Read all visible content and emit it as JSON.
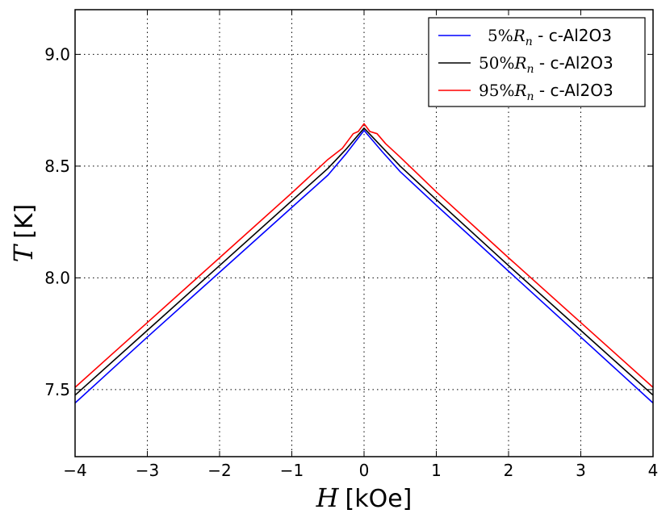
{
  "chart_data": {
    "type": "line",
    "title": "",
    "xlabel": {
      "variable": "H",
      "unit": "[kOe]"
    },
    "ylabel": {
      "variable": "T",
      "unit": "[K]"
    },
    "xlim": [
      -4,
      4
    ],
    "ylim": [
      7.2,
      9.2
    ],
    "xticks": [
      -4,
      -3,
      -2,
      -1,
      0,
      1,
      2,
      3,
      4
    ],
    "xtick_labels": [
      "−4",
      "−3",
      "−2",
      "−1",
      "0",
      "1",
      "2",
      "3",
      "4"
    ],
    "yticks": [
      7.5,
      8.0,
      8.5,
      9.0
    ],
    "ytick_labels": [
      "7.5",
      "8.0",
      "8.5",
      "9.0"
    ],
    "grid": true,
    "legend_position": "top-right",
    "series": [
      {
        "name": "5%R_n - c-Al2O3",
        "legend": {
          "percent": "5%",
          "symbol": "R",
          "subscript": "n",
          "suffix": " - c-Al2O3"
        },
        "color": "#0000ff",
        "x": [
          -4,
          -3,
          -2,
          -1,
          -0.5,
          -0.25,
          0,
          0.25,
          0.5,
          1,
          2,
          3,
          4
        ],
        "y": [
          7.44,
          7.735,
          8.025,
          8.315,
          8.46,
          8.555,
          8.66,
          8.565,
          8.475,
          8.325,
          8.03,
          7.735,
          7.44
        ]
      },
      {
        "name": "50%R_n - c-Al2O3",
        "legend": {
          "percent": "50%",
          "symbol": "R",
          "subscript": "n",
          "suffix": " - c-Al2O3"
        },
        "color": "#000000",
        "x": [
          -4,
          -3,
          -2,
          -1,
          -0.5,
          -0.25,
          0,
          0.25,
          0.5,
          1,
          2,
          3,
          4
        ],
        "y": [
          7.475,
          7.765,
          8.055,
          8.345,
          8.49,
          8.575,
          8.67,
          8.585,
          8.5,
          8.35,
          8.055,
          7.765,
          7.475
        ]
      },
      {
        "name": "95%R_n - c-Al2O3",
        "legend": {
          "percent": "95%",
          "symbol": "R",
          "subscript": "n",
          "suffix": " - c-Al2O3"
        },
        "color": "#ff0000",
        "x": [
          -4,
          -3,
          -2,
          -1,
          -0.5,
          -0.3,
          -0.15,
          -0.08,
          0,
          0.08,
          0.18,
          0.3,
          0.5,
          1,
          2,
          3,
          4
        ],
        "y": [
          7.51,
          7.8,
          8.09,
          8.38,
          8.53,
          8.58,
          8.645,
          8.655,
          8.69,
          8.655,
          8.645,
          8.6,
          8.54,
          8.385,
          8.09,
          7.8,
          7.51
        ]
      }
    ]
  }
}
